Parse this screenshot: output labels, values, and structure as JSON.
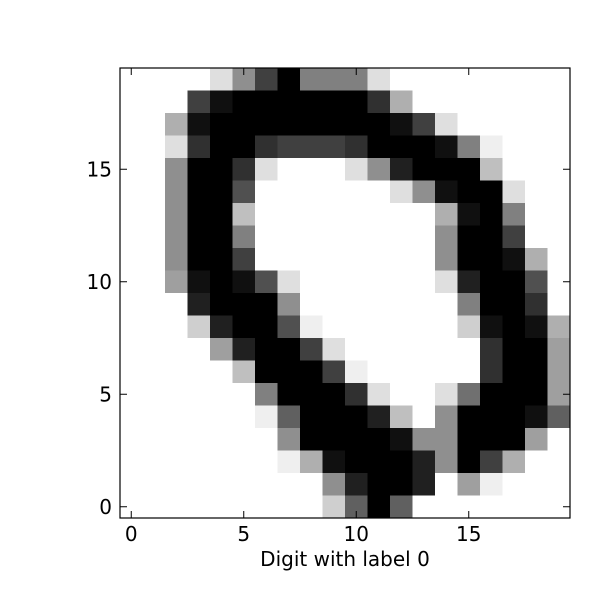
{
  "chart_data": {
    "type": "heatmap",
    "title": "",
    "xlabel": "Digit with label 0",
    "ylabel": "",
    "colormap": "gray_r",
    "value_range": [
      0,
      16
    ],
    "xlim": [
      -0.5,
      19.5
    ],
    "ylim": [
      -0.5,
      19.5
    ],
    "origin": "lower",
    "grid": false,
    "x_ticks": [
      0,
      5,
      10,
      15
    ],
    "y_ticks": [
      0,
      5,
      10,
      15
    ],
    "x_tick_labels": [
      "0",
      "5",
      "10",
      "15"
    ],
    "y_tick_labels": [
      "0",
      "5",
      "10",
      "15"
    ],
    "rows_top_to_bottom": [
      [
        0,
        0,
        0,
        0,
        2,
        7,
        12,
        16,
        8,
        8,
        8,
        2,
        0,
        0,
        0,
        0,
        0,
        0,
        0,
        0
      ],
      [
        0,
        0,
        0,
        12,
        15,
        16,
        16,
        16,
        16,
        16,
        16,
        13,
        5,
        0,
        0,
        0,
        0,
        0,
        0,
        0
      ],
      [
        0,
        0,
        5,
        15,
        16,
        16,
        16,
        16,
        16,
        16,
        16,
        16,
        15,
        12,
        2,
        0,
        0,
        0,
        0,
        0
      ],
      [
        0,
        0,
        2,
        13,
        16,
        16,
        13,
        12,
        12,
        12,
        13,
        16,
        16,
        16,
        15,
        8,
        1,
        0,
        0,
        0
      ],
      [
        0,
        0,
        7,
        16,
        16,
        13,
        2,
        0,
        0,
        0,
        2,
        7,
        14,
        16,
        16,
        16,
        4,
        0,
        0,
        0
      ],
      [
        0,
        0,
        7,
        16,
        16,
        11,
        0,
        0,
        0,
        0,
        0,
        0,
        2,
        7,
        15,
        16,
        16,
        2,
        0,
        0
      ],
      [
        0,
        0,
        7,
        16,
        16,
        4,
        0,
        0,
        0,
        0,
        0,
        0,
        0,
        0,
        5,
        15,
        16,
        8,
        0,
        0
      ],
      [
        0,
        0,
        7,
        16,
        16,
        8,
        0,
        0,
        0,
        0,
        0,
        0,
        0,
        0,
        7,
        16,
        16,
        12,
        0,
        0
      ],
      [
        0,
        0,
        7,
        16,
        16,
        12,
        0,
        0,
        0,
        0,
        0,
        0,
        0,
        0,
        7,
        16,
        16,
        15,
        5,
        0
      ],
      [
        0,
        0,
        6,
        15,
        16,
        15,
        11,
        2,
        0,
        0,
        0,
        0,
        0,
        0,
        2,
        14,
        16,
        16,
        11,
        0
      ],
      [
        0,
        0,
        0,
        14,
        16,
        16,
        16,
        7,
        0,
        0,
        0,
        0,
        0,
        0,
        0,
        8,
        16,
        16,
        13,
        0
      ],
      [
        0,
        0,
        0,
        3,
        14,
        16,
        16,
        11,
        1,
        0,
        0,
        0,
        0,
        0,
        0,
        3,
        15,
        16,
        15,
        5
      ],
      [
        0,
        0,
        0,
        0,
        6,
        14,
        16,
        16,
        12,
        2,
        0,
        0,
        0,
        0,
        0,
        0,
        13,
        16,
        16,
        6
      ],
      [
        0,
        0,
        0,
        0,
        0,
        4,
        16,
        16,
        16,
        12,
        1,
        0,
        0,
        0,
        0,
        0,
        13,
        16,
        16,
        6
      ],
      [
        0,
        0,
        0,
        0,
        0,
        0,
        8,
        16,
        16,
        16,
        13,
        2,
        0,
        0,
        2,
        9,
        16,
        16,
        16,
        6
      ],
      [
        0,
        0,
        0,
        0,
        0,
        0,
        1,
        10,
        16,
        16,
        16,
        14,
        4,
        0,
        7,
        16,
        16,
        16,
        15,
        10
      ],
      [
        0,
        0,
        0,
        0,
        0,
        0,
        0,
        7,
        16,
        16,
        16,
        16,
        15,
        7,
        7,
        16,
        16,
        16,
        6,
        0
      ],
      [
        0,
        0,
        0,
        0,
        0,
        0,
        0,
        1,
        5,
        15,
        16,
        16,
        16,
        14,
        7,
        16,
        12,
        5,
        0,
        0
      ],
      [
        0,
        0,
        0,
        0,
        0,
        0,
        0,
        0,
        0,
        7,
        14,
        16,
        16,
        14,
        0,
        6,
        1,
        0,
        0,
        0
      ],
      [
        0,
        0,
        0,
        0,
        0,
        0,
        0,
        0,
        0,
        3,
        10,
        16,
        10,
        0,
        0,
        0,
        0,
        0,
        0,
        0
      ]
    ]
  }
}
